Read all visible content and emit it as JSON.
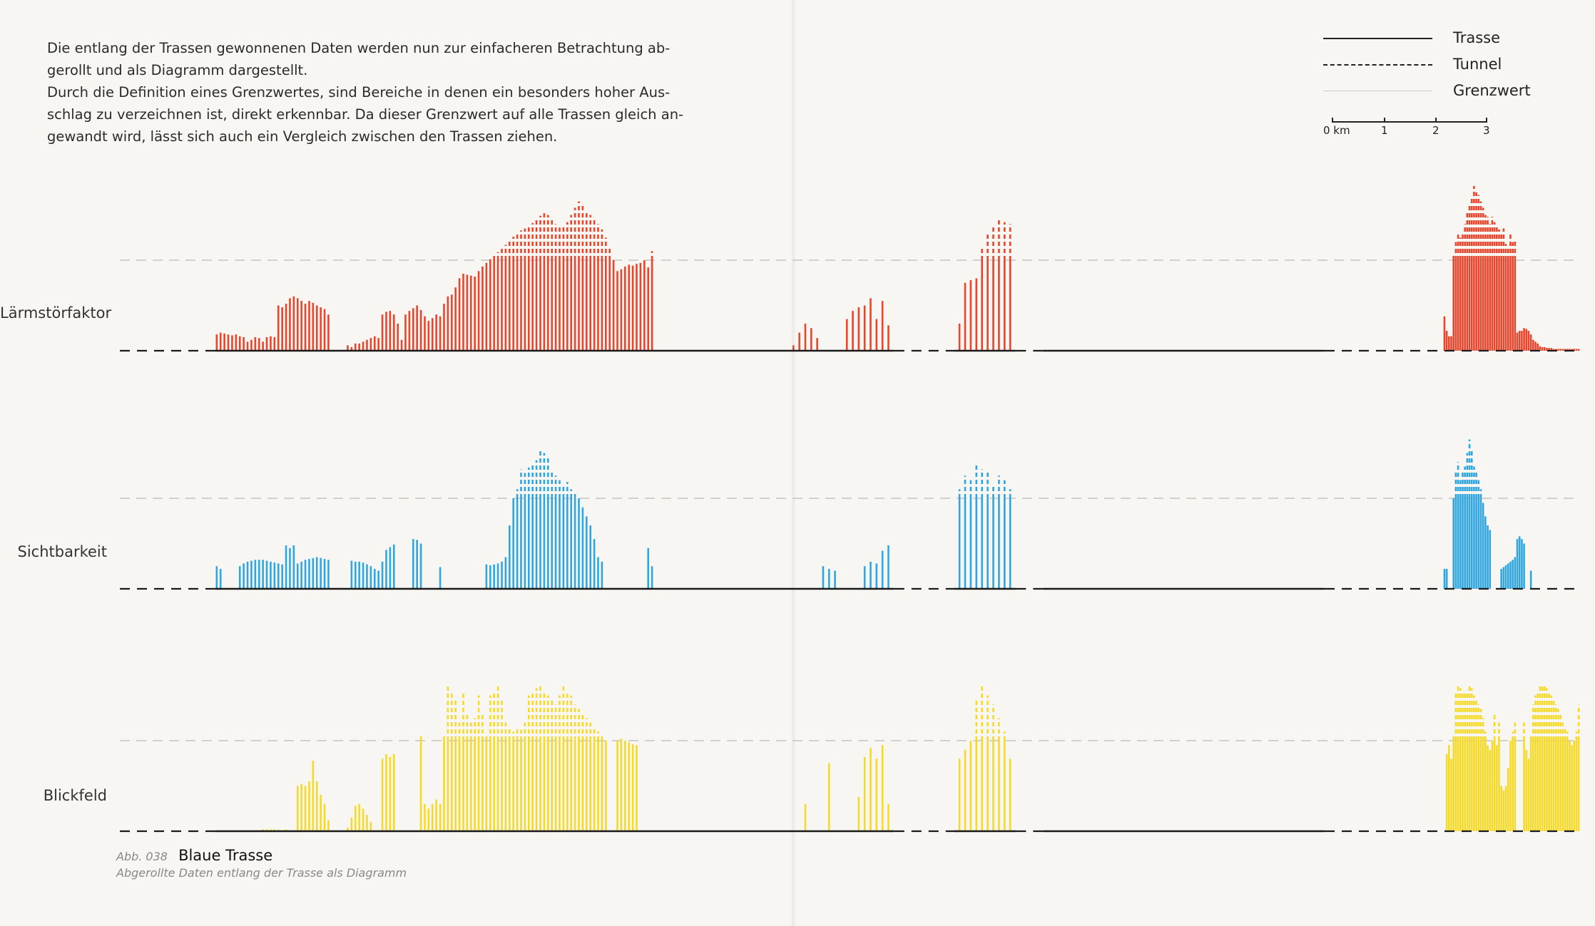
{
  "intro": {
    "line1": "Die entlang der Trassen gewonnenen Daten werden nun zur einfacheren Betrachtung ab-",
    "line2": "gerollt und als Diagramm dargestellt.",
    "line3": "Durch die Definition eines Grenzwertes, sind Bereiche in denen ein besonders hoher Aus-",
    "line4": "schlag zu verzeichnen ist, direkt erkennbar. Da dieser Grenzwert auf alle Trassen gleich an-",
    "line5": "gewandt wird, lässt sich auch ein Vergleich zwischen den Trassen ziehen."
  },
  "legend": {
    "trasse": "Trasse",
    "tunnel": "Tunnel",
    "grenzwert": "Grenzwert",
    "scale_labels": [
      "0 km",
      "1",
      "2",
      "3"
    ]
  },
  "caption": {
    "number": "Abb. 038",
    "title": "Blaue Trasse",
    "subtitle": "Abgerollte Daten entlang der Trasse als Diagramm"
  },
  "chart_data": [
    {
      "type": "bar",
      "name": "Lärmstörfaktor",
      "color": "#e8452c",
      "threshold": 1.0,
      "ylim": [
        0,
        1.8
      ],
      "tunnels": [
        [
          0,
          1.6
        ],
        [
          13.05,
          14.05
        ],
        [
          15.1,
          15.55
        ],
        [
          20.3,
          24.6
        ]
      ],
      "segments": [
        {
          "x_range": [
            1.6,
            9.0
          ],
          "values": [
            0.18,
            0.2,
            0.19,
            0.18,
            0.17,
            0.18,
            0.16,
            0.15,
            0.1,
            0.12,
            0.15,
            0.14,
            0.1,
            0.15,
            0.16,
            0.15,
            0.5,
            0.48,
            0.52,
            0.58,
            0.6,
            0.58,
            0.55,
            0.52,
            0.55,
            0.53,
            0.5,
            0.48,
            0.46,
            0.4,
            0.0,
            0.0,
            0.0,
            0.0,
            0.06,
            0.04,
            0.08,
            0.08,
            0.1,
            0.12,
            0.14,
            0.16,
            0.14,
            0.4,
            0.43,
            0.44,
            0.4,
            0.3,
            0.12,
            0.4,
            0.44,
            0.47,
            0.5,
            0.45,
            0.38,
            0.33,
            0.36,
            0.4,
            0.38,
            0.52,
            0.6,
            0.62,
            0.7,
            0.8,
            0.85,
            0.84,
            0.83,
            0.82,
            0.88,
            0.93,
            0.97,
            1.01,
            1.05,
            1.09,
            1.13,
            1.17,
            1.21,
            1.26,
            1.3,
            1.33,
            1.35,
            1.37,
            1.41,
            1.45,
            1.49,
            1.53,
            1.5,
            1.45,
            1.4,
            1.36,
            1.38,
            1.42,
            1.5,
            1.58,
            1.65,
            1.62,
            1.55,
            1.5,
            1.45,
            1.4,
            1.34,
            1.25,
            1.15,
            1.0,
            0.88,
            0.9,
            0.93,
            0.95,
            0.94,
            0.96,
            0.97,
            1.0,
            0.92,
            1.1
          ]
        },
        {
          "x_range": [
            11.2,
            13.0
          ],
          "values": [
            0.0,
            0.06,
            0.2,
            0.3,
            0.25,
            0.14,
            0.0,
            0.0,
            0.0,
            0.0,
            0.35,
            0.44,
            0.48,
            0.5,
            0.58,
            0.35,
            0.55,
            0.28
          ]
        },
        {
          "x_range": [
            14.1,
            15.05
          ],
          "values": [
            0.3,
            0.75,
            0.78,
            0.8,
            1.15,
            1.3,
            1.38,
            1.45,
            1.42,
            1.4
          ]
        },
        {
          "x_range": [
            22.3,
            24.6
          ],
          "values": [
            0.38,
            0.22,
            0.16,
            0.16,
            1.05,
            1.2,
            1.3,
            1.25,
            1.3,
            1.4,
            1.52,
            1.6,
            1.7,
            1.82,
            1.75,
            1.72,
            1.65,
            1.58,
            1.5,
            1.48,
            1.4,
            1.48,
            1.42,
            1.38,
            1.34,
            1.3,
            1.35,
            1.18,
            1.15,
            1.3,
            1.2,
            1.22,
            0.2,
            0.22,
            0.22,
            0.25,
            0.24,
            0.22,
            0.18,
            0.12,
            0.1,
            0.08,
            0.05,
            0.04,
            0.04,
            0.03,
            0.03,
            0.03,
            0.02,
            0.02,
            0.02,
            0.02,
            0.02,
            0.02,
            0.02,
            0.02,
            0.02,
            0.02,
            0.02,
            0.02
          ]
        }
      ]
    },
    {
      "type": "bar",
      "name": "Sichtbarkeit",
      "color": "#2fa6df",
      "threshold": 1.0,
      "ylim": [
        0,
        1.8
      ],
      "tunnels": [
        [
          0,
          1.6
        ],
        [
          13.05,
          14.05
        ],
        [
          15.1,
          15.55
        ],
        [
          20.3,
          24.6
        ]
      ],
      "segments": [
        {
          "x_range": [
            1.6,
            9.0
          ],
          "values": [
            0.25,
            0.22,
            0.0,
            0.0,
            0.0,
            0.0,
            0.25,
            0.28,
            0.3,
            0.31,
            0.32,
            0.32,
            0.32,
            0.31,
            0.3,
            0.29,
            0.28,
            0.27,
            0.48,
            0.45,
            0.48,
            0.28,
            0.3,
            0.32,
            0.33,
            0.34,
            0.35,
            0.34,
            0.33,
            0.32,
            0.0,
            0.0,
            0.0,
            0.0,
            0.0,
            0.31,
            0.3,
            0.3,
            0.29,
            0.27,
            0.25,
            0.22,
            0.2,
            0.3,
            0.43,
            0.46,
            0.49,
            0.0,
            0.0,
            0.0,
            0.0,
            0.55,
            0.54,
            0.5,
            0.0,
            0.0,
            0.0,
            0.0,
            0.24,
            0.0,
            0.0,
            0.0,
            0.0,
            0.0,
            0.0,
            0.0,
            0.0,
            0.0,
            0.0,
            0.0,
            0.27,
            0.26,
            0.27,
            0.28,
            0.3,
            0.35,
            0.7,
            1.0,
            1.1,
            1.32,
            1.28,
            1.34,
            1.38,
            1.42,
            1.55,
            1.5,
            1.45,
            1.3,
            1.25,
            1.2,
            1.15,
            1.18,
            1.1,
            1.05,
            1.0,
            0.9,
            0.8,
            0.7,
            0.55,
            0.35,
            0.3,
            0.0,
            0.0,
            0.0,
            0.0,
            0.0,
            0.0,
            0.0,
            0.0,
            0.0,
            0.0,
            0.0,
            0.45,
            0.25
          ]
        },
        {
          "x_range": [
            11.2,
            13.0
          ],
          "values": [
            0.0,
            0.0,
            0.0,
            0.0,
            0.0,
            0.0,
            0.25,
            0.22,
            0.2,
            0.0,
            0.0,
            0.0,
            0.0,
            0.25,
            0.3,
            0.28,
            0.42,
            0.48
          ]
        },
        {
          "x_range": [
            14.1,
            15.05
          ],
          "values": [
            1.1,
            1.25,
            1.2,
            1.38,
            1.32,
            1.3,
            1.15,
            1.25,
            1.2,
            1.1
          ]
        },
        {
          "x_range": [
            22.3,
            24.6
          ],
          "values": [
            0.22,
            0.22,
            0.0,
            0.0,
            1.0,
            1.3,
            1.4,
            1.2,
            1.3,
            1.35,
            1.5,
            1.65,
            1.55,
            1.35,
            1.3,
            1.2,
            1.1,
            0.95,
            0.8,
            0.7,
            0.65,
            0.0,
            0.0,
            0.0,
            0.0,
            0.22,
            0.24,
            0.26,
            0.28,
            0.3,
            0.32,
            0.35,
            0.55,
            0.58,
            0.55,
            0.5,
            0.0,
            0.0,
            0.2,
            0.0,
            0.0,
            0.0,
            0.0,
            0.0,
            0.0,
            0.0,
            0.0,
            0.0,
            0.0,
            0.0,
            0.0,
            0.0,
            0.0,
            0.0,
            0.0,
            0.0,
            0.0,
            0.0,
            0.0,
            0.0
          ]
        }
      ]
    },
    {
      "type": "bar",
      "name": "Blickfeld",
      "color": "#f5da27",
      "threshold": 1.0,
      "ylim": [
        0,
        1.8
      ],
      "tunnels": [
        [
          0,
          1.6
        ],
        [
          13.05,
          14.05
        ],
        [
          15.1,
          15.55
        ],
        [
          20.3,
          24.6
        ]
      ],
      "segments": [
        {
          "x_range": [
            1.6,
            9.0
          ],
          "values": [
            0.0,
            0.0,
            0.0,
            0.0,
            0.0,
            0.0,
            0.0,
            0.0,
            0.0,
            0.0,
            0.0,
            0.0,
            0.02,
            0.02,
            0.02,
            0.02,
            0.02,
            0.0,
            0.02,
            0.0,
            0.0,
            0.5,
            0.52,
            0.5,
            0.55,
            0.78,
            0.55,
            0.4,
            0.3,
            0.12,
            0.0,
            0.0,
            0.0,
            0.0,
            0.04,
            0.15,
            0.28,
            0.3,
            0.25,
            0.18,
            0.1,
            0.0,
            0.0,
            0.8,
            0.85,
            0.82,
            0.85,
            0.0,
            0.0,
            0.0,
            0.0,
            0.0,
            0.0,
            1.05,
            0.3,
            0.25,
            0.3,
            0.35,
            0.3,
            1.05,
            1.6,
            1.55,
            1.45,
            1.2,
            1.55,
            1.3,
            1.2,
            1.25,
            1.5,
            1.3,
            1.05,
            1.5,
            1.55,
            1.6,
            1.45,
            1.2,
            1.15,
            1.1,
            1.15,
            1.12,
            1.2,
            1.5,
            1.55,
            1.58,
            1.6,
            1.55,
            1.5,
            1.45,
            1.4,
            1.5,
            1.6,
            1.55,
            1.5,
            1.4,
            1.35,
            1.3,
            1.25,
            1.2,
            1.15,
            1.1,
            1.05,
            1.0,
            0.0,
            0.0,
            1.0,
            1.02,
            1.0,
            0.98,
            0.96,
            0.95,
            0.0,
            0.0,
            0.0,
            0.0
          ]
        },
        {
          "x_range": [
            11.2,
            13.0
          ],
          "values": [
            0.0,
            0.0,
            0.0,
            0.3,
            0.0,
            0.0,
            0.0,
            0.75,
            0.0,
            0.0,
            0.0,
            0.0,
            0.38,
            0.82,
            0.92,
            0.8,
            0.95,
            0.3
          ]
        },
        {
          "x_range": [
            14.1,
            15.05
          ],
          "values": [
            0.8,
            0.9,
            1.0,
            1.45,
            1.6,
            1.5,
            1.4,
            1.25,
            1.1,
            0.8
          ]
        },
        {
          "x_range": [
            22.3,
            24.6
          ],
          "values": [
            0.0,
            0.85,
            0.95,
            0.8,
            1.05,
            1.55,
            1.6,
            1.58,
            1.55,
            1.52,
            1.55,
            1.6,
            1.58,
            1.5,
            1.45,
            1.4,
            1.35,
            1.25,
            1.1,
            0.95,
            0.9,
            1.0,
            1.3,
            0.95,
            1.2,
            0.5,
            0.45,
            0.5,
            0.7,
            1.0,
            1.1,
            1.2,
            0.0,
            0.0,
            0.0,
            1.2,
            0.9,
            0.8,
            1.05,
            1.4,
            1.5,
            1.55,
            1.6,
            1.62,
            1.6,
            1.58,
            1.55,
            1.5,
            1.45,
            1.4,
            1.35,
            1.3,
            1.2,
            1.15,
            1.1,
            1.0,
            0.95,
            1.0,
            1.1,
            1.4
          ]
        }
      ]
    }
  ]
}
